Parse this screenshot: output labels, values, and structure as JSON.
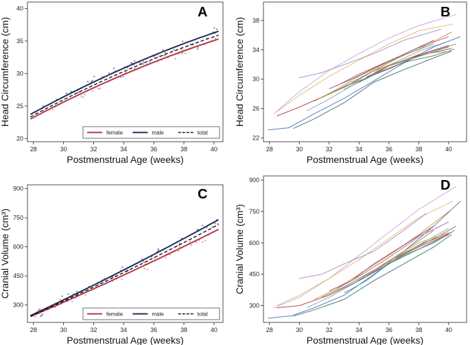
{
  "chart_data": [
    {
      "panel": "A",
      "type": "scatter",
      "title": "",
      "xlabel": "Postmenstrual Age (weeks)",
      "ylabel": "Head Circumference (cm)",
      "xlim": [
        27.6,
        40.6
      ],
      "ylim": [
        19.5,
        41
      ],
      "xticks": [
        28,
        30,
        32,
        34,
        36,
        38,
        40
      ],
      "yticks": [
        20,
        25,
        30,
        35,
        40
      ],
      "series": [
        {
          "name": "female",
          "values_at_x": {
            "x": [
              28,
              30,
              32,
              34,
              36,
              38,
              40.2
            ]
          },
          "start": 23.0,
          "end": 35.3,
          "color": "#b5364a",
          "style": "solid"
        },
        {
          "name": "male",
          "start": 23.7,
          "end": 36.5,
          "color": "#1f2f55",
          "style": "solid"
        },
        {
          "name": "total",
          "start": 23.3,
          "end": 35.9,
          "color": "#111111",
          "style": "dashed"
        }
      ],
      "fit_range": [
        27.8,
        40.3
      ],
      "legend": [
        "female",
        "male",
        "total"
      ],
      "legend_position": "bottom-right"
    },
    {
      "panel": "B",
      "type": "line",
      "title": "",
      "xlabel": "Postmenstrual Age (weeks)",
      "ylabel": "Head Circumference (cm)",
      "xlim": [
        27.6,
        41.2
      ],
      "ylim": [
        21.5,
        40.5
      ],
      "xticks": [
        28,
        30,
        32,
        34,
        36,
        38,
        40
      ],
      "yticks": [
        22,
        26,
        30,
        34,
        38
      ],
      "series": [
        {
          "x": [
            27.9,
            29.3,
            31,
            33,
            35,
            37,
            39,
            40.8
          ],
          "values": [
            23.1,
            23.4,
            25.3,
            27.4,
            29.8,
            32.2,
            34.4,
            35.8
          ],
          "color": "#4a6fb5"
        },
        {
          "x": [
            28.3,
            30,
            32,
            34,
            36,
            38,
            40.5
          ],
          "values": [
            25.3,
            28.3,
            31.2,
            33.5,
            35.6,
            37.3,
            38.8
          ],
          "color": "#c9a0d8"
        },
        {
          "x": [
            28.5,
            30,
            32,
            34,
            36,
            38,
            40.3
          ],
          "values": [
            25.6,
            27.8,
            30.4,
            32.6,
            34.8,
            36.6,
            37.5
          ],
          "color": "#e0b86a"
        },
        {
          "x": [
            29.6,
            31,
            33,
            35,
            37,
            39,
            40.2
          ],
          "values": [
            23.3,
            24.6,
            26.8,
            29.6,
            31.3,
            32.9,
            33.8
          ],
          "color": "#2e6e6e"
        },
        {
          "x": [
            28.5,
            30,
            32,
            34,
            36,
            38,
            40.2
          ],
          "values": [
            25.0,
            26.2,
            28.0,
            29.8,
            31.4,
            33.2,
            34.2
          ],
          "color": "#a33c3c"
        },
        {
          "x": [
            30.5,
            32,
            34,
            36,
            38,
            40
          ],
          "values": [
            25.7,
            27.3,
            29.7,
            31.9,
            33.8,
            35.2
          ],
          "color": "#7fa0c8"
        },
        {
          "x": [
            31,
            32.5,
            34,
            36,
            38,
            40.2
          ],
          "values": [
            27.0,
            28.6,
            30.4,
            32.4,
            34.1,
            36.4
          ],
          "color": "#d68c2a"
        },
        {
          "x": [
            31.5,
            33,
            35,
            37,
            39
          ],
          "values": [
            27.5,
            29.0,
            31.2,
            33.3,
            34.8
          ],
          "color": "#5f8f3e"
        },
        {
          "x": [
            32,
            33.5,
            35,
            37,
            39
          ],
          "values": [
            28.7,
            30.0,
            31.5,
            33.4,
            35.3
          ],
          "color": "#6b4c8a"
        },
        {
          "x": [
            32.5,
            34,
            36,
            38,
            40
          ],
          "values": [
            29.1,
            30.7,
            32.5,
            34.3,
            35.8
          ],
          "color": "#c25a7c"
        },
        {
          "x": [
            33,
            34.5,
            36,
            38,
            40
          ],
          "values": [
            28.6,
            30.1,
            31.8,
            33.1,
            34.4
          ],
          "color": "#3c8fb0"
        },
        {
          "x": [
            30,
            31.5,
            33,
            35,
            37,
            39.5
          ],
          "values": [
            30.2,
            30.9,
            32.0,
            33.5,
            35.3,
            36.8
          ],
          "color": "#a582c0"
        },
        {
          "x": [
            33.5,
            35,
            37,
            39,
            40.5
          ],
          "values": [
            29.4,
            31.2,
            32.6,
            33.9,
            34.8
          ],
          "color": "#8c6d3b"
        },
        {
          "x": [
            34,
            35.5,
            37,
            39,
            40.4
          ],
          "values": [
            29.6,
            31.1,
            32.3,
            33.2,
            34.1
          ],
          "color": "#4d7a59"
        },
        {
          "x": [
            34.5,
            36,
            38,
            40
          ],
          "values": [
            30.3,
            31.8,
            33.3,
            34.6
          ],
          "color": "#9b3f5a"
        },
        {
          "x": [
            35,
            36.5,
            38,
            40
          ],
          "values": [
            31.0,
            32.2,
            33.4,
            33.8
          ],
          "color": "#d1a43a"
        }
      ]
    },
    {
      "panel": "C",
      "type": "scatter",
      "title": "",
      "xlabel": "Postmenstrual Age (weeks)",
      "ylabel": "Cranial Volume (cm³)",
      "xlim": [
        27.6,
        40.6
      ],
      "ylim": [
        210,
        920
      ],
      "xticks": [
        28,
        30,
        32,
        34,
        36,
        38,
        40
      ],
      "yticks": [
        300,
        450,
        600,
        750,
        900
      ],
      "series": [
        {
          "name": "female",
          "start": 240,
          "end": 690,
          "color": "#b5364a",
          "style": "solid"
        },
        {
          "name": "male",
          "start": 245,
          "end": 740,
          "color": "#1f2f55",
          "style": "solid"
        },
        {
          "name": "total",
          "start": 242,
          "end": 715,
          "color": "#111111",
          "style": "dashed"
        }
      ],
      "fit_range": [
        27.8,
        40.3
      ],
      "legend": [
        "female",
        "male",
        "total"
      ],
      "legend_position": "bottom-right"
    },
    {
      "panel": "D",
      "type": "line",
      "title": "",
      "xlabel": "Postmenstrual Age (weeks)",
      "ylabel": "Cranial Volume (cm³)",
      "xlim": [
        27.6,
        41.2
      ],
      "ylim": [
        220,
        920
      ],
      "xticks": [
        28,
        30,
        32,
        34,
        36,
        38,
        40
      ],
      "yticks": [
        300,
        450,
        600,
        750,
        900
      ],
      "series": [
        {
          "x": [
            27.9,
            29.5,
            31,
            33,
            35,
            37,
            39,
            40.8
          ],
          "values": [
            240,
            252,
            290,
            350,
            450,
            560,
            680,
            800
          ],
          "color": "#4a6fb5"
        },
        {
          "x": [
            28.3,
            30,
            32,
            34,
            36,
            38,
            40.5
          ],
          "values": [
            290,
            340,
            430,
            540,
            650,
            760,
            870
          ],
          "color": "#c9a0d8"
        },
        {
          "x": [
            28.5,
            30,
            32,
            34,
            36,
            38,
            40.3
          ],
          "values": [
            300,
            350,
            430,
            520,
            620,
            720,
            800
          ],
          "color": "#e0b86a"
        },
        {
          "x": [
            29.6,
            31,
            33,
            35,
            37,
            39,
            40.2
          ],
          "values": [
            250,
            280,
            330,
            420,
            500,
            580,
            640
          ],
          "color": "#2e6e6e"
        },
        {
          "x": [
            28.5,
            30,
            32,
            34,
            36,
            38,
            40.2
          ],
          "values": [
            290,
            300,
            350,
            420,
            500,
            590,
            650
          ],
          "color": "#a33c3c"
        },
        {
          "x": [
            30.5,
            32,
            34,
            36,
            38,
            40
          ],
          "values": [
            290,
            340,
            420,
            500,
            590,
            670
          ],
          "color": "#7fa0c8"
        },
        {
          "x": [
            31,
            32.5,
            34,
            36,
            38,
            40.2
          ],
          "values": [
            330,
            380,
            450,
            540,
            640,
            760
          ],
          "color": "#d68c2a"
        },
        {
          "x": [
            31.5,
            33,
            35,
            37,
            39
          ],
          "values": [
            340,
            390,
            470,
            560,
            660
          ],
          "color": "#5f8f3e"
        },
        {
          "x": [
            32,
            33.5,
            35,
            37,
            39
          ],
          "values": [
            370,
            420,
            500,
            590,
            680
          ],
          "color": "#6b4c8a"
        },
        {
          "x": [
            32.5,
            34,
            36,
            38,
            40
          ],
          "values": [
            380,
            440,
            530,
            630,
            700
          ],
          "color": "#c25a7c"
        },
        {
          "x": [
            33,
            34.5,
            36,
            38,
            40
          ],
          "values": [
            360,
            420,
            500,
            570,
            640
          ],
          "color": "#3c8fb0"
        },
        {
          "x": [
            30,
            31.5,
            33,
            35,
            37,
            38.5
          ],
          "values": [
            430,
            450,
            500,
            560,
            660,
            740
          ],
          "color": "#a582c0"
        },
        {
          "x": [
            33.5,
            35,
            37,
            39,
            40.5
          ],
          "values": [
            400,
            470,
            550,
            620,
            680
          ],
          "color": "#8c6d3b"
        },
        {
          "x": [
            34,
            35.5,
            37,
            39,
            40.4
          ],
          "values": [
            420,
            480,
            540,
            600,
            660
          ],
          "color": "#4d7a59"
        },
        {
          "x": [
            34.5,
            36,
            38,
            40
          ],
          "values": [
            440,
            510,
            580,
            640
          ],
          "color": "#9b3f5a"
        },
        {
          "x": [
            35,
            36.5,
            38,
            40
          ],
          "values": [
            470,
            530,
            600,
            650
          ],
          "color": "#d1a43a"
        }
      ]
    }
  ]
}
